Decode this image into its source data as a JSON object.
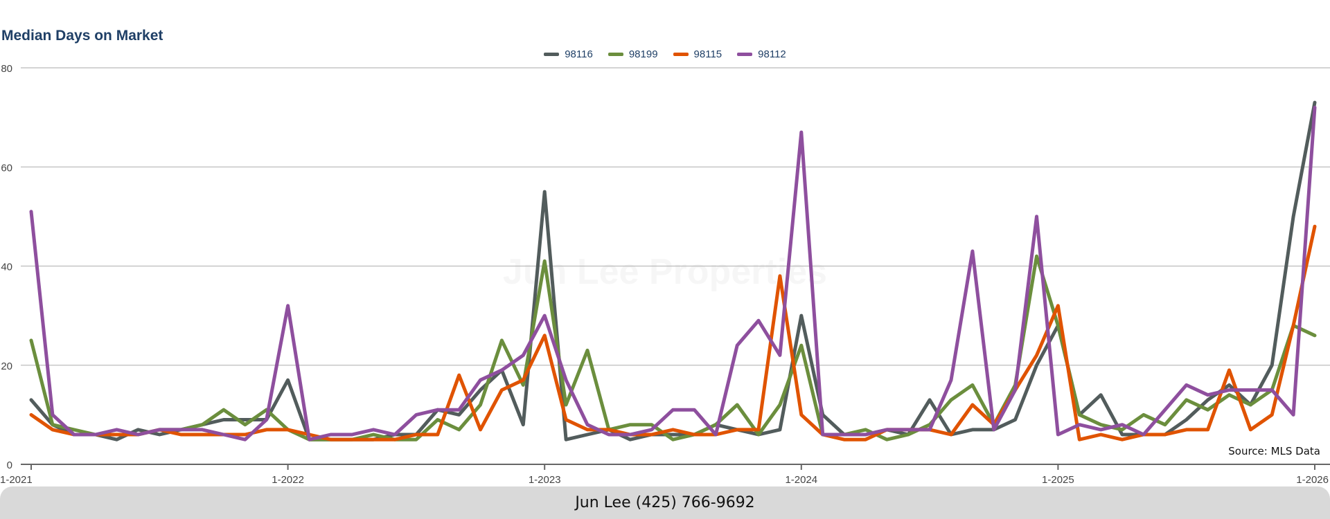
{
  "chart_data": {
    "type": "line",
    "title": "Median Days on Market",
    "x_tick_labels": [
      "1-2021",
      "1-2022",
      "1-2023",
      "1-2024",
      "1-2025",
      "1-2026"
    ],
    "x_start": "2021-01",
    "x_end": "2026-01",
    "x_interval": "month",
    "ylim": [
      0,
      80
    ],
    "y_ticks": [
      0,
      20,
      40,
      60,
      80
    ],
    "grid": true,
    "legend_position": "top",
    "series": [
      {
        "name": "98116",
        "color": "#525c5c",
        "values": [
          13,
          8,
          6,
          6,
          5,
          7,
          6,
          7,
          8,
          9,
          9,
          9,
          17,
          5,
          5,
          5,
          5,
          6,
          6,
          11,
          10,
          15,
          19,
          8,
          55,
          5,
          6,
          7,
          5,
          6,
          6,
          6,
          8,
          7,
          6,
          7,
          30,
          10,
          6,
          6,
          7,
          6,
          13,
          6,
          7,
          7,
          9,
          20,
          28,
          10,
          14,
          6,
          6,
          6,
          9,
          13,
          16,
          12,
          20,
          50,
          73
        ]
      },
      {
        "name": "98199",
        "color": "#6b8e3d",
        "values": [
          25,
          8,
          7,
          6,
          6,
          6,
          7,
          7,
          8,
          11,
          8,
          11,
          7,
          5,
          5,
          5,
          6,
          5,
          5,
          9,
          7,
          12,
          25,
          16,
          41,
          12,
          23,
          7,
          8,
          8,
          5,
          6,
          8,
          12,
          6,
          12,
          24,
          6,
          6,
          7,
          5,
          6,
          8,
          13,
          16,
          8,
          16,
          42,
          28,
          10,
          8,
          7,
          10,
          8,
          13,
          11,
          14,
          12,
          15,
          28,
          26
        ]
      },
      {
        "name": "98115",
        "color": "#e05300",
        "values": [
          10,
          7,
          6,
          6,
          6,
          6,
          7,
          6,
          6,
          6,
          6,
          7,
          7,
          6,
          5,
          5,
          5,
          5,
          6,
          6,
          18,
          7,
          15,
          17,
          26,
          9,
          7,
          7,
          6,
          6,
          7,
          6,
          6,
          7,
          7,
          38,
          10,
          6,
          5,
          5,
          7,
          7,
          7,
          6,
          12,
          8,
          15,
          22,
          32,
          5,
          6,
          5,
          6,
          6,
          7,
          7,
          19,
          7,
          10,
          28,
          48
        ]
      },
      {
        "name": "98112",
        "color": "#8e4f9e",
        "values": [
          51,
          10,
          6,
          6,
          7,
          6,
          7,
          7,
          7,
          6,
          5,
          9,
          32,
          5,
          6,
          6,
          7,
          6,
          10,
          11,
          11,
          17,
          19,
          22,
          30,
          17,
          8,
          6,
          6,
          7,
          11,
          11,
          6,
          24,
          29,
          22,
          67,
          6,
          6,
          6,
          7,
          7,
          7,
          17,
          43,
          7,
          15,
          50,
          6,
          8,
          7,
          8,
          6,
          11,
          16,
          14,
          15,
          15,
          15,
          10,
          72
        ]
      }
    ],
    "source": "Source: MLS Data",
    "watermark": "Jun Lee Properties"
  },
  "footer": {
    "contact": "Jun Lee (425) 766-9692"
  }
}
